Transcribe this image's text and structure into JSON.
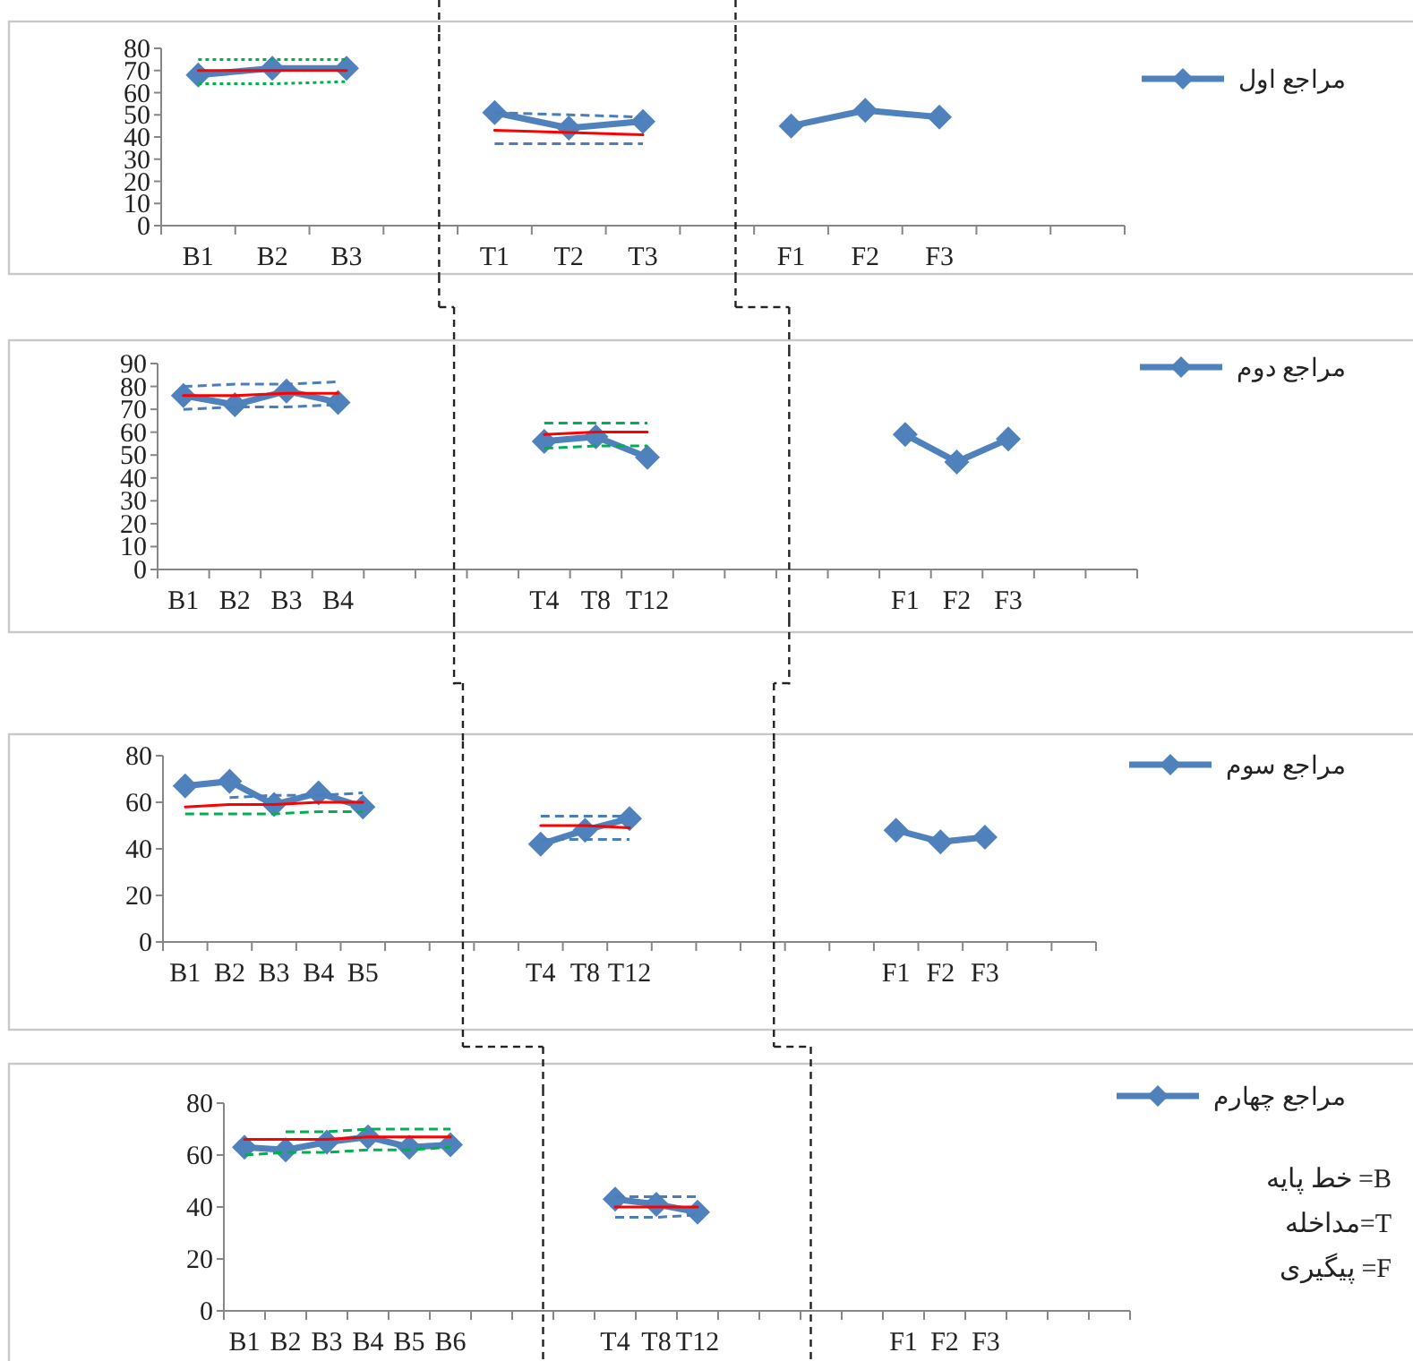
{
  "chart_data": [
    {
      "type": "line",
      "categories": [
        "B1",
        "B2",
        "B3",
        null,
        "T1",
        "T2",
        "T3",
        null,
        "F1",
        "F2",
        "F3",
        null,
        null
      ],
      "ylim": [
        0,
        80
      ],
      "yticks": [
        0,
        10,
        20,
        30,
        40,
        50,
        60,
        70,
        80
      ],
      "grid": false,
      "legend": "right",
      "marker": "diamond",
      "series": [
        {
          "name": "مراجع اول",
          "color": "#4f81bd",
          "values": [
            68,
            71,
            71,
            null,
            51,
            44,
            47,
            null,
            45,
            52,
            49,
            null,
            null
          ]
        },
        {
          "color": "#ff0000",
          "line_style": "solid",
          "marker": "none",
          "values": [
            70,
            70,
            70,
            null,
            null,
            null,
            null,
            null,
            null,
            null,
            null,
            null,
            null
          ]
        },
        {
          "color": "#00b050",
          "line_style": "dotted",
          "marker": "none",
          "values": [
            75,
            75,
            75,
            null,
            null,
            null,
            null,
            null,
            null,
            null,
            null,
            null,
            null
          ]
        },
        {
          "color": "#00b050",
          "line_style": "dotted",
          "marker": "none",
          "values": [
            64,
            64,
            65,
            null,
            null,
            null,
            null,
            null,
            null,
            null,
            null,
            null,
            null
          ]
        },
        {
          "color": "#ff0000",
          "line_style": "solid",
          "marker": "none",
          "values": [
            null,
            null,
            null,
            null,
            43,
            42,
            41,
            null,
            null,
            null,
            null,
            null,
            null
          ]
        },
        {
          "color": "#4a7ebb",
          "line_style": "dashed",
          "marker": "none",
          "values": [
            null,
            null,
            null,
            null,
            51,
            50,
            49,
            null,
            null,
            null,
            null,
            null,
            null
          ]
        },
        {
          "color": "#4a7ebb",
          "line_style": "dashed",
          "marker": "none",
          "values": [
            null,
            null,
            null,
            null,
            37,
            37,
            37,
            null,
            null,
            null,
            null,
            null,
            null
          ]
        }
      ]
    },
    {
      "type": "line",
      "categories": [
        "B1",
        "B2",
        "B3",
        "B4",
        null,
        null,
        null,
        "T4",
        "T8",
        "T12",
        null,
        null,
        null,
        null,
        "F1",
        "F2",
        "F3",
        null,
        null
      ],
      "ylim": [
        0,
        90
      ],
      "yticks": [
        0,
        10,
        20,
        30,
        40,
        50,
        60,
        70,
        80,
        90
      ],
      "grid": false,
      "legend": "right",
      "marker": "diamond",
      "series": [
        {
          "name": "مراجع دوم",
          "color": "#4f81bd",
          "values": [
            76,
            72,
            78,
            73,
            null,
            null,
            null,
            56,
            58,
            49,
            null,
            null,
            null,
            null,
            59,
            47,
            57,
            null,
            null
          ]
        },
        {
          "color": "#ff0000",
          "line_style": "solid",
          "marker": "none",
          "values": [
            76,
            76,
            77,
            77,
            null,
            null,
            null,
            null,
            null,
            null,
            null,
            null,
            null,
            null,
            null,
            null,
            null,
            null,
            null
          ]
        },
        {
          "color": "#4a7ebb",
          "line_style": "dashed",
          "marker": "none",
          "values": [
            80,
            81,
            81,
            82,
            null,
            null,
            null,
            null,
            null,
            null,
            null,
            null,
            null,
            null,
            null,
            null,
            null,
            null,
            null
          ]
        },
        {
          "color": "#4a7ebb",
          "line_style": "dashed",
          "marker": "none",
          "values": [
            70,
            71,
            71,
            72,
            null,
            null,
            null,
            null,
            null,
            null,
            null,
            null,
            null,
            null,
            null,
            null,
            null,
            null,
            null
          ]
        },
        {
          "color": "#ff0000",
          "line_style": "solid",
          "marker": "none",
          "values": [
            null,
            null,
            null,
            null,
            null,
            null,
            null,
            59,
            60,
            60,
            null,
            null,
            null,
            null,
            null,
            null,
            null,
            null,
            null
          ]
        },
        {
          "color": "#00b050",
          "line_style": "dashed",
          "marker": "none",
          "values": [
            null,
            null,
            null,
            null,
            null,
            null,
            null,
            64,
            64,
            64,
            null,
            null,
            null,
            null,
            null,
            null,
            null,
            null,
            null
          ]
        },
        {
          "color": "#00b050",
          "line_style": "dashed",
          "marker": "none",
          "values": [
            null,
            null,
            null,
            null,
            null,
            null,
            null,
            53,
            54,
            54,
            null,
            null,
            null,
            null,
            null,
            null,
            null,
            null,
            null
          ]
        }
      ]
    },
    {
      "type": "line",
      "categories": [
        "B1",
        "B2",
        "B3",
        "B4",
        "B5",
        null,
        null,
        null,
        "T4",
        "T8",
        "T12",
        null,
        null,
        null,
        null,
        null,
        "F1",
        "F2",
        "F3",
        null,
        null
      ],
      "ylim": [
        0,
        80
      ],
      "yticks": [
        0,
        20,
        40,
        60,
        80
      ],
      "grid": false,
      "legend": "right",
      "marker": "diamond",
      "series": [
        {
          "name": "مراجع سوم",
          "color": "#4f81bd",
          "values": [
            67,
            69,
            59,
            64,
            58,
            null,
            null,
            null,
            42,
            48,
            53,
            null,
            null,
            null,
            null,
            null,
            48,
            43,
            45,
            null,
            null
          ]
        },
        {
          "color": "#ff0000",
          "line_style": "solid",
          "marker": "none",
          "values": [
            58,
            59,
            59,
            60,
            60,
            null,
            null,
            null,
            null,
            null,
            null,
            null,
            null,
            null,
            null,
            null,
            null,
            null,
            null,
            null,
            null
          ]
        },
        {
          "color": "#4a7ebb",
          "line_style": "dashed",
          "marker": "none",
          "values": [
            null,
            62,
            63,
            63,
            64,
            null,
            null,
            null,
            null,
            null,
            null,
            null,
            null,
            null,
            null,
            null,
            null,
            null,
            null,
            null,
            null
          ]
        },
        {
          "color": "#00b050",
          "line_style": "dashed",
          "marker": "none",
          "values": [
            55,
            55,
            55,
            56,
            56,
            null,
            null,
            null,
            null,
            null,
            null,
            null,
            null,
            null,
            null,
            null,
            null,
            null,
            null,
            null,
            null
          ]
        },
        {
          "color": "#ff0000",
          "line_style": "solid",
          "marker": "none",
          "values": [
            null,
            null,
            null,
            null,
            null,
            null,
            null,
            null,
            50,
            50,
            49,
            null,
            null,
            null,
            null,
            null,
            null,
            null,
            null,
            null,
            null
          ]
        },
        {
          "color": "#4a7ebb",
          "line_style": "dashed",
          "marker": "none",
          "values": [
            null,
            null,
            null,
            null,
            null,
            null,
            null,
            null,
            54,
            54,
            54,
            null,
            null,
            null,
            null,
            null,
            null,
            null,
            null,
            null,
            null
          ]
        },
        {
          "color": "#4a7ebb",
          "line_style": "dashed",
          "marker": "none",
          "values": [
            null,
            null,
            null,
            null,
            null,
            null,
            null,
            null,
            44,
            44,
            44,
            null,
            null,
            null,
            null,
            null,
            null,
            null,
            null,
            null,
            null
          ]
        }
      ]
    },
    {
      "type": "line",
      "categories": [
        "B1",
        "B2",
        "B3",
        "B4",
        "B5",
        "B6",
        null,
        null,
        null,
        "T4",
        "T8",
        "T12",
        null,
        null,
        null,
        null,
        "F1",
        "F2",
        "F3",
        null,
        null,
        null
      ],
      "ylim": [
        0,
        80
      ],
      "yticks": [
        0,
        20,
        40,
        60,
        80
      ],
      "grid": false,
      "legend": "right",
      "marker": "diamond",
      "annotations": [
        "B= خط پایه",
        "T=مداخله",
        "F= پیگیری"
      ],
      "series": [
        {
          "name": "مراجع چهارم",
          "color": "#4f81bd",
          "values": [
            63,
            62,
            65,
            67,
            63,
            64,
            null,
            null,
            null,
            43,
            41,
            38,
            null,
            null,
            null,
            null,
            null,
            null,
            null,
            null,
            null,
            null
          ]
        },
        {
          "color": "#ff0000",
          "line_style": "solid",
          "marker": "none",
          "values": [
            66,
            66,
            66,
            67,
            67,
            67,
            null,
            null,
            null,
            null,
            null,
            null,
            null,
            null,
            null,
            null,
            null,
            null,
            null,
            null,
            null,
            null
          ]
        },
        {
          "color": "#00b050",
          "line_style": "dashed",
          "marker": "none",
          "values": [
            null,
            69,
            69,
            70,
            70,
            70,
            null,
            null,
            null,
            null,
            null,
            null,
            null,
            null,
            null,
            null,
            null,
            null,
            null,
            null,
            null,
            null
          ]
        },
        {
          "color": "#00b050",
          "line_style": "dashed",
          "marker": "none",
          "values": [
            60,
            61,
            61,
            62,
            62,
            63,
            null,
            null,
            null,
            null,
            null,
            null,
            null,
            null,
            null,
            null,
            null,
            null,
            null,
            null,
            null,
            null
          ]
        },
        {
          "color": "#ff0000",
          "line_style": "solid",
          "marker": "none",
          "values": [
            null,
            null,
            null,
            null,
            null,
            null,
            null,
            null,
            null,
            40,
            40,
            40,
            null,
            null,
            null,
            null,
            null,
            null,
            null,
            null,
            null,
            null
          ]
        },
        {
          "color": "#4a7ebb",
          "line_style": "dashed",
          "marker": "none",
          "values": [
            null,
            null,
            null,
            null,
            null,
            null,
            null,
            null,
            null,
            44,
            44,
            44,
            null,
            null,
            null,
            null,
            null,
            null,
            null,
            null,
            null,
            null
          ]
        },
        {
          "color": "#4a7ebb",
          "line_style": "dashed",
          "marker": "none",
          "values": [
            null,
            null,
            null,
            null,
            null,
            null,
            null,
            null,
            null,
            36,
            36,
            37,
            null,
            null,
            null,
            null,
            null,
            null,
            null,
            null,
            null,
            null
          ]
        }
      ]
    }
  ]
}
